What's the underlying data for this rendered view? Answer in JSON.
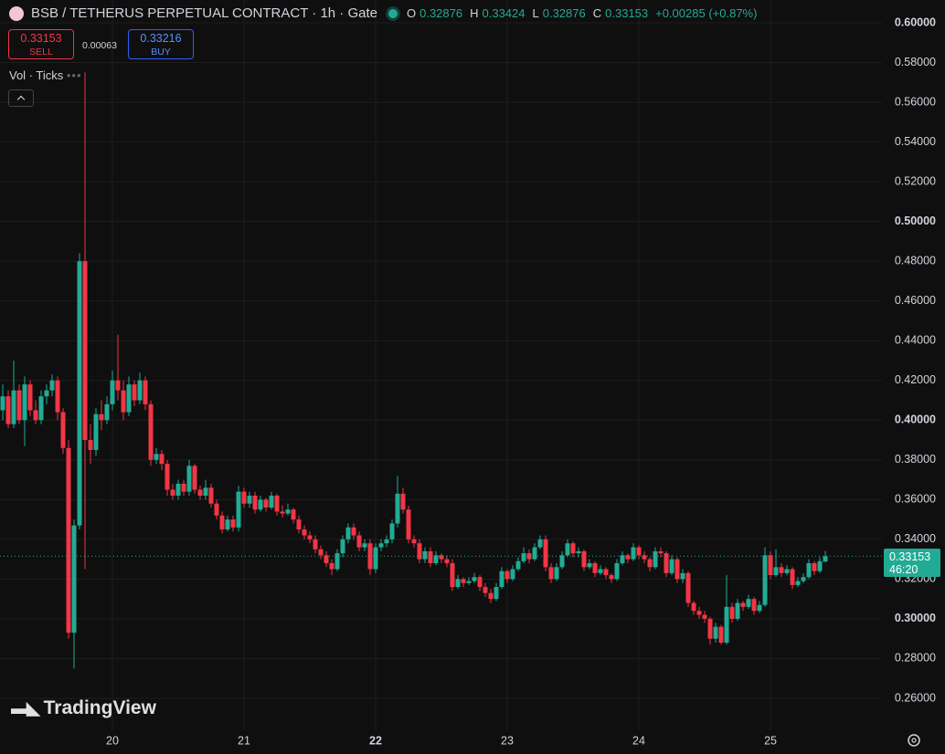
{
  "chart_data": {
    "type": "candlestick",
    "title": "BSB / TETHERUS PERPETUAL CONTRACT · 1h · Gate",
    "header": {
      "o_label": "O",
      "o": 0.32876,
      "h_label": "H",
      "h": 0.33424,
      "l_label": "L",
      "l": 0.32876,
      "c_label": "C",
      "c": 0.33153,
      "change": "+0.00285 (+0.87%)"
    },
    "trade": {
      "sell_price": 0.33153,
      "sell_label": "SELL",
      "spread": 0.00063,
      "buy_price": 0.33216,
      "buy_label": "BUY"
    },
    "indicator": "Vol · Ticks",
    "last_price": {
      "value": 0.33153,
      "countdown": "46:20"
    },
    "watermark": "TradingView",
    "up_color": "#22ab94",
    "down_color": "#f23645",
    "grid": true,
    "xlim": [
      -0.5,
      160.33
    ],
    "ylim": [
      0.2439,
      0.6115
    ],
    "xticks": [
      {
        "value": 20,
        "label": "20"
      },
      {
        "value": 44,
        "label": "21"
      },
      {
        "value": 68,
        "label": "22"
      },
      {
        "value": 92,
        "label": "23"
      },
      {
        "value": 116,
        "label": "24"
      },
      {
        "value": 140,
        "label": "25"
      }
    ],
    "yticks": [
      {
        "value": 0.26,
        "label": "0.26000"
      },
      {
        "value": 0.28,
        "label": "0.28000"
      },
      {
        "value": 0.3,
        "label": "0.30000"
      },
      {
        "value": 0.32,
        "label": "0.32000"
      },
      {
        "value": 0.34,
        "label": "0.34000"
      },
      {
        "value": 0.36,
        "label": "0.36000"
      },
      {
        "value": 0.38,
        "label": "0.38000"
      },
      {
        "value": 0.4,
        "label": "0.40000"
      },
      {
        "value": 0.42,
        "label": "0.42000"
      },
      {
        "value": 0.44,
        "label": "0.44000"
      },
      {
        "value": 0.46,
        "label": "0.46000"
      },
      {
        "value": 0.48,
        "label": "0.48000"
      },
      {
        "value": 0.5,
        "label": "0.50000"
      },
      {
        "value": 0.52,
        "label": "0.52000"
      },
      {
        "value": 0.54,
        "label": "0.54000"
      },
      {
        "value": 0.56,
        "label": "0.56000"
      },
      {
        "value": 0.58,
        "label": "0.58000"
      },
      {
        "value": 0.6,
        "label": "0.60000"
      }
    ],
    "ohlc": [
      [
        0.405,
        0.418,
        0.4,
        0.412
      ],
      [
        0.412,
        0.415,
        0.396,
        0.398
      ],
      [
        0.398,
        0.43,
        0.396,
        0.415
      ],
      [
        0.415,
        0.418,
        0.398,
        0.4
      ],
      [
        0.4,
        0.422,
        0.387,
        0.418
      ],
      [
        0.418,
        0.42,
        0.402,
        0.405
      ],
      [
        0.405,
        0.41,
        0.398,
        0.4
      ],
      [
        0.4,
        0.415,
        0.398,
        0.412
      ],
      [
        0.412,
        0.418,
        0.408,
        0.415
      ],
      [
        0.415,
        0.423,
        0.412,
        0.42
      ],
      [
        0.42,
        0.422,
        0.4,
        0.404
      ],
      [
        0.404,
        0.406,
        0.383,
        0.386
      ],
      [
        0.386,
        0.39,
        0.29,
        0.293
      ],
      [
        0.293,
        0.35,
        0.275,
        0.347
      ],
      [
        0.347,
        0.484,
        0.345,
        0.48
      ],
      [
        0.48,
        0.575,
        0.325,
        0.39
      ],
      [
        0.39,
        0.398,
        0.378,
        0.385
      ],
      [
        0.385,
        0.406,
        0.382,
        0.403
      ],
      [
        0.403,
        0.41,
        0.395,
        0.4
      ],
      [
        0.4,
        0.412,
        0.398,
        0.408
      ],
      [
        0.408,
        0.425,
        0.405,
        0.42
      ],
      [
        0.42,
        0.443,
        0.41,
        0.415
      ],
      [
        0.415,
        0.42,
        0.4,
        0.404
      ],
      [
        0.404,
        0.422,
        0.402,
        0.418
      ],
      [
        0.418,
        0.42,
        0.407,
        0.41
      ],
      [
        0.41,
        0.424,
        0.408,
        0.42
      ],
      [
        0.42,
        0.422,
        0.405,
        0.408
      ],
      [
        0.408,
        0.41,
        0.377,
        0.38
      ],
      [
        0.38,
        0.386,
        0.378,
        0.383
      ],
      [
        0.383,
        0.385,
        0.375,
        0.378
      ],
      [
        0.378,
        0.38,
        0.362,
        0.365
      ],
      [
        0.365,
        0.368,
        0.36,
        0.362
      ],
      [
        0.362,
        0.37,
        0.36,
        0.368
      ],
      [
        0.368,
        0.37,
        0.362,
        0.364
      ],
      [
        0.364,
        0.38,
        0.362,
        0.377
      ],
      [
        0.377,
        0.378,
        0.363,
        0.365
      ],
      [
        0.365,
        0.367,
        0.36,
        0.362
      ],
      [
        0.362,
        0.37,
        0.36,
        0.366
      ],
      [
        0.366,
        0.368,
        0.356,
        0.358
      ],
      [
        0.358,
        0.36,
        0.35,
        0.352
      ],
      [
        0.352,
        0.354,
        0.343,
        0.345
      ],
      [
        0.345,
        0.352,
        0.344,
        0.35
      ],
      [
        0.35,
        0.352,
        0.344,
        0.346
      ],
      [
        0.346,
        0.367,
        0.344,
        0.364
      ],
      [
        0.364,
        0.366,
        0.356,
        0.358
      ],
      [
        0.358,
        0.364,
        0.356,
        0.362
      ],
      [
        0.362,
        0.364,
        0.353,
        0.355
      ],
      [
        0.355,
        0.362,
        0.354,
        0.36
      ],
      [
        0.36,
        0.361,
        0.354,
        0.356
      ],
      [
        0.356,
        0.364,
        0.355,
        0.362
      ],
      [
        0.362,
        0.363,
        0.352,
        0.354
      ],
      [
        0.354,
        0.357,
        0.351,
        0.353
      ],
      [
        0.353,
        0.358,
        0.352,
        0.355
      ],
      [
        0.355,
        0.356,
        0.348,
        0.35
      ],
      [
        0.35,
        0.352,
        0.343,
        0.345
      ],
      [
        0.345,
        0.347,
        0.34,
        0.342
      ],
      [
        0.342,
        0.344,
        0.338,
        0.34
      ],
      [
        0.34,
        0.342,
        0.333,
        0.335
      ],
      [
        0.335,
        0.337,
        0.33,
        0.332
      ],
      [
        0.332,
        0.334,
        0.326,
        0.328
      ],
      [
        0.328,
        0.33,
        0.322,
        0.325
      ],
      [
        0.325,
        0.335,
        0.324,
        0.333
      ],
      [
        0.333,
        0.342,
        0.331,
        0.34
      ],
      [
        0.34,
        0.348,
        0.338,
        0.346
      ],
      [
        0.346,
        0.348,
        0.34,
        0.342
      ],
      [
        0.342,
        0.344,
        0.334,
        0.336
      ],
      [
        0.336,
        0.34,
        0.334,
        0.338
      ],
      [
        0.338,
        0.34,
        0.322,
        0.325
      ],
      [
        0.325,
        0.338,
        0.323,
        0.336
      ],
      [
        0.336,
        0.34,
        0.334,
        0.338
      ],
      [
        0.338,
        0.342,
        0.336,
        0.34
      ],
      [
        0.34,
        0.35,
        0.338,
        0.348
      ],
      [
        0.348,
        0.372,
        0.346,
        0.363
      ],
      [
        0.363,
        0.366,
        0.353,
        0.355
      ],
      [
        0.355,
        0.357,
        0.338,
        0.34
      ],
      [
        0.34,
        0.342,
        0.336,
        0.338
      ],
      [
        0.338,
        0.34,
        0.328,
        0.33
      ],
      [
        0.33,
        0.336,
        0.328,
        0.334
      ],
      [
        0.334,
        0.336,
        0.326,
        0.328
      ],
      [
        0.328,
        0.334,
        0.327,
        0.332
      ],
      [
        0.332,
        0.333,
        0.328,
        0.33
      ],
      [
        0.33,
        0.332,
        0.326,
        0.328
      ],
      [
        0.328,
        0.33,
        0.314,
        0.316
      ],
      [
        0.316,
        0.322,
        0.315,
        0.32
      ],
      [
        0.32,
        0.321,
        0.316,
        0.318
      ],
      [
        0.318,
        0.321,
        0.317,
        0.319
      ],
      [
        0.319,
        0.323,
        0.318,
        0.321
      ],
      [
        0.321,
        0.322,
        0.314,
        0.316
      ],
      [
        0.316,
        0.318,
        0.311,
        0.313
      ],
      [
        0.313,
        0.315,
        0.308,
        0.31
      ],
      [
        0.31,
        0.318,
        0.309,
        0.316
      ],
      [
        0.316,
        0.326,
        0.315,
        0.324
      ],
      [
        0.324,
        0.325,
        0.318,
        0.32
      ],
      [
        0.32,
        0.327,
        0.319,
        0.325
      ],
      [
        0.325,
        0.331,
        0.324,
        0.329
      ],
      [
        0.329,
        0.336,
        0.328,
        0.333
      ],
      [
        0.333,
        0.335,
        0.328,
        0.33
      ],
      [
        0.33,
        0.338,
        0.329,
        0.336
      ],
      [
        0.336,
        0.342,
        0.335,
        0.34
      ],
      [
        0.34,
        0.342,
        0.324,
        0.326
      ],
      [
        0.326,
        0.328,
        0.318,
        0.32
      ],
      [
        0.32,
        0.328,
        0.319,
        0.326
      ],
      [
        0.326,
        0.334,
        0.325,
        0.332
      ],
      [
        0.332,
        0.34,
        0.331,
        0.338
      ],
      [
        0.338,
        0.339,
        0.331,
        0.333
      ],
      [
        0.333,
        0.336,
        0.331,
        0.334
      ],
      [
        0.334,
        0.335,
        0.324,
        0.326
      ],
      [
        0.326,
        0.33,
        0.325,
        0.328
      ],
      [
        0.328,
        0.329,
        0.321,
        0.323
      ],
      [
        0.323,
        0.327,
        0.322,
        0.325
      ],
      [
        0.325,
        0.326,
        0.32,
        0.322
      ],
      [
        0.322,
        0.323,
        0.318,
        0.32
      ],
      [
        0.32,
        0.33,
        0.319,
        0.328
      ],
      [
        0.328,
        0.334,
        0.327,
        0.332
      ],
      [
        0.332,
        0.333,
        0.328,
        0.33
      ],
      [
        0.33,
        0.338,
        0.329,
        0.336
      ],
      [
        0.336,
        0.337,
        0.33,
        0.332
      ],
      [
        0.332,
        0.334,
        0.328,
        0.33
      ],
      [
        0.33,
        0.331,
        0.324,
        0.326
      ],
      [
        0.326,
        0.336,
        0.325,
        0.334
      ],
      [
        0.334,
        0.336,
        0.331,
        0.333
      ],
      [
        0.333,
        0.334,
        0.321,
        0.323
      ],
      [
        0.323,
        0.332,
        0.322,
        0.33
      ],
      [
        0.33,
        0.331,
        0.318,
        0.32
      ],
      [
        0.32,
        0.325,
        0.318,
        0.323
      ],
      [
        0.323,
        0.324,
        0.306,
        0.308
      ],
      [
        0.308,
        0.309,
        0.302,
        0.304
      ],
      [
        0.304,
        0.306,
        0.3,
        0.302
      ],
      [
        0.302,
        0.304,
        0.298,
        0.3
      ],
      [
        0.3,
        0.301,
        0.287,
        0.29
      ],
      [
        0.29,
        0.298,
        0.288,
        0.296
      ],
      [
        0.296,
        0.297,
        0.287,
        0.288
      ],
      [
        0.288,
        0.322,
        0.287,
        0.306
      ],
      [
        0.306,
        0.308,
        0.298,
        0.3
      ],
      [
        0.3,
        0.31,
        0.299,
        0.308
      ],
      [
        0.308,
        0.309,
        0.304,
        0.306
      ],
      [
        0.306,
        0.312,
        0.305,
        0.31
      ],
      [
        0.31,
        0.311,
        0.302,
        0.304
      ],
      [
        0.304,
        0.309,
        0.303,
        0.307
      ],
      [
        0.307,
        0.336,
        0.306,
        0.332
      ],
      [
        0.332,
        0.334,
        0.32,
        0.322
      ],
      [
        0.322,
        0.335,
        0.321,
        0.326
      ],
      [
        0.326,
        0.328,
        0.321,
        0.323
      ],
      [
        0.323,
        0.327,
        0.322,
        0.325
      ],
      [
        0.325,
        0.326,
        0.315,
        0.317
      ],
      [
        0.317,
        0.321,
        0.316,
        0.319
      ],
      [
        0.319,
        0.323,
        0.318,
        0.321
      ],
      [
        0.321,
        0.33,
        0.32,
        0.328
      ],
      [
        0.328,
        0.329,
        0.322,
        0.324
      ],
      [
        0.324,
        0.331,
        0.323,
        0.329
      ],
      [
        0.32876,
        0.33424,
        0.32876,
        0.33153
      ]
    ]
  }
}
